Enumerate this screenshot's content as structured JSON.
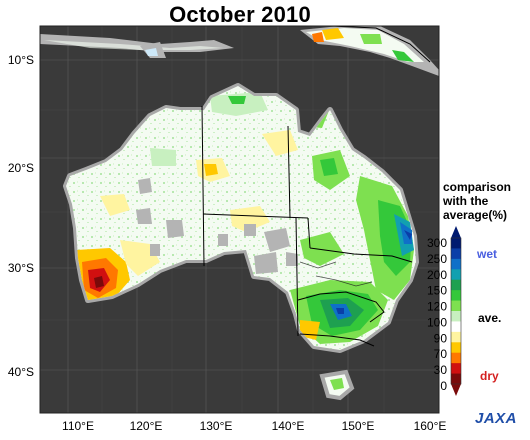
{
  "title": "October 2010",
  "legend": {
    "title_lines": [
      "comparison",
      "with the",
      "average(%)"
    ],
    "ticks": [
      "300",
      "250",
      "200",
      "150",
      "120",
      "100",
      "90",
      "70",
      "30",
      "0"
    ],
    "wet_label": "wet",
    "ave_label": "ave.",
    "dry_label": "dry",
    "wet_color": "#4a5fe0",
    "dry_color": "#d42020",
    "colors": [
      "#001a70",
      "#0a3ea8",
      "#0f70c8",
      "#12a0b0",
      "#1ea050",
      "#34c83a",
      "#7ee050",
      "#c8f0c0",
      "#ffffff",
      "#fff4a0",
      "#ffc800",
      "#ff7800",
      "#d01010",
      "#7a0a0a"
    ]
  },
  "axes": {
    "lat_labels": [
      "10°S",
      "20°S",
      "30°S",
      "40°S"
    ],
    "lon_labels": [
      "110°E",
      "120°E",
      "130°E",
      "140°E",
      "150°E",
      "160°E"
    ]
  },
  "map": {
    "background_color": "#3a3a3a",
    "land_base_color": "#f4fbf2",
    "missing_data_color": "#b4b4b4",
    "coast_outline_color": "#a8a8a8",
    "border_color": "#000000"
  },
  "logo_text": "JAXA"
}
